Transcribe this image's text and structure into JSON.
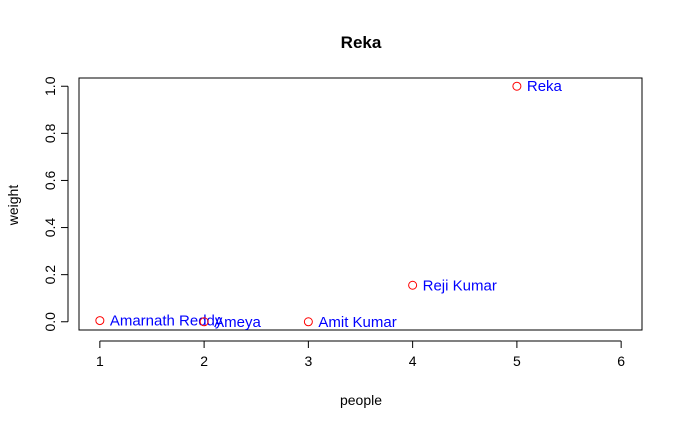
{
  "chart_data": {
    "type": "scatter",
    "title": "Reka",
    "xlabel": "people",
    "ylabel": "weight",
    "xlim": [
      0.8,
      6.2
    ],
    "ylim": [
      -0.035,
      1.035
    ],
    "xticks": [
      1,
      2,
      3,
      4,
      5,
      6
    ],
    "yticks": [
      0.0,
      0.2,
      0.4,
      0.6,
      0.8,
      1.0
    ],
    "ytick_labels": [
      "0.0",
      "0.2",
      "0.4",
      "0.6",
      "0.8",
      "1.0"
    ],
    "grid": false,
    "points": [
      {
        "x": 1,
        "y": 0.005,
        "label": "Amarnath Reddy"
      },
      {
        "x": 2,
        "y": 0.0,
        "label": "Ameya"
      },
      {
        "x": 3,
        "y": 0.0,
        "label": "Amit Kumar"
      },
      {
        "x": 4,
        "y": 0.155,
        "label": "Reji Kumar"
      },
      {
        "x": 5,
        "y": 1.0,
        "label": "Reka"
      }
    ],
    "colors": {
      "point": "#ff0000",
      "label": "#0000ff"
    }
  }
}
